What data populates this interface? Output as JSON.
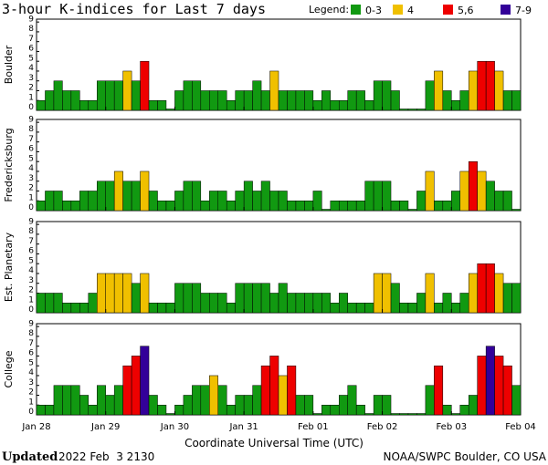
{
  "title": "3-hour K-indices for Last 7 days",
  "legend": {
    "label": "Legend:",
    "entries": [
      {
        "label": "0-3",
        "color": "#119911"
      },
      {
        "label": "4",
        "color": "#f0c000"
      },
      {
        "label": "5,6",
        "color": "#ee0000"
      },
      {
        "label": "7-9",
        "color": "#330099"
      }
    ]
  },
  "footer": {
    "updated_label": "Updated",
    "updated_value": "2022 Feb  3 2130",
    "source": "NOAA/SWPC Boulder, CO USA"
  },
  "chart_data": {
    "type": "bar",
    "xlabel": "Coordinate Universal Time (UTC)",
    "x_ticks": [
      "Jan 28",
      "Jan 29",
      "Jan 30",
      "Jan 31",
      "Feb 01",
      "Feb 02",
      "Feb 03",
      "Feb 04"
    ],
    "y_ticks": [
      "0",
      "1",
      "2",
      "3",
      "4",
      "5",
      "6",
      "7",
      "8",
      "9"
    ],
    "ylim": [
      0,
      9
    ],
    "slots": 56,
    "grid": false,
    "panels": [
      {
        "name": "Boulder",
        "values": [
          1,
          2,
          3,
          2,
          2,
          1,
          1,
          3,
          3,
          3,
          4,
          3,
          5,
          1,
          1,
          0,
          2,
          3,
          3,
          2,
          2,
          2,
          1,
          2,
          2,
          3,
          2,
          4,
          2,
          2,
          2,
          2,
          1,
          2,
          1,
          1,
          2,
          2,
          1,
          3,
          3,
          2,
          0,
          0,
          0,
          3,
          4,
          2,
          1,
          2,
          4,
          5,
          5,
          4,
          2,
          2
        ]
      },
      {
        "name": "Fredericksburg",
        "values": [
          1,
          2,
          2,
          1,
          1,
          2,
          2,
          3,
          3,
          4,
          3,
          3,
          4,
          2,
          1,
          1,
          2,
          3,
          3,
          1,
          2,
          2,
          1,
          2,
          3,
          2,
          3,
          2,
          2,
          1,
          1,
          1,
          2,
          0,
          1,
          1,
          1,
          1,
          3,
          3,
          3,
          1,
          1,
          0,
          2,
          4,
          1,
          1,
          2,
          4,
          5,
          4,
          3,
          2,
          2,
          0
        ]
      },
      {
        "name": "Est. Planetary",
        "values": [
          2,
          2,
          2,
          1,
          1,
          1,
          2,
          4,
          4,
          4,
          4,
          3,
          4,
          1,
          1,
          1,
          3,
          3,
          3,
          2,
          2,
          2,
          1,
          3,
          3,
          3,
          3,
          2,
          3,
          2,
          2,
          2,
          2,
          2,
          1,
          2,
          1,
          1,
          1,
          4,
          4,
          3,
          1,
          1,
          2,
          4,
          1,
          2,
          1,
          2,
          4,
          5,
          5,
          4,
          3,
          3
        ]
      },
      {
        "name": "College",
        "values": [
          1,
          1,
          3,
          3,
          3,
          2,
          1,
          3,
          2,
          3,
          5,
          6,
          7,
          2,
          1,
          0,
          1,
          2,
          3,
          3,
          4,
          3,
          1,
          2,
          2,
          3,
          5,
          6,
          4,
          5,
          2,
          2,
          0,
          1,
          1,
          2,
          3,
          1,
          0,
          2,
          2,
          0,
          0,
          0,
          0,
          3,
          5,
          1,
          0,
          1,
          2,
          6,
          7,
          6,
          5,
          3
        ]
      }
    ]
  }
}
